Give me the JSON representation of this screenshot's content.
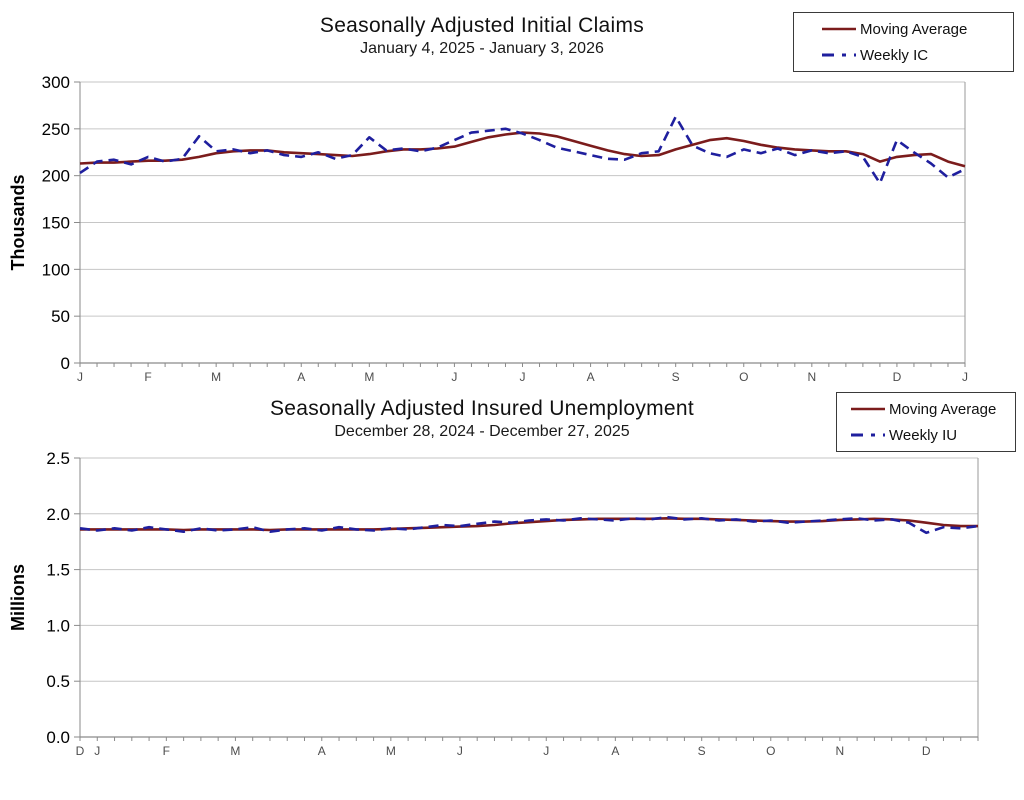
{
  "chart_data": [
    {
      "type": "line",
      "title": "Seasonally Adjusted Initial Claims",
      "subtitle": "January 4, 2025 - January 3, 2026",
      "ylabel": "Thousands",
      "ylim": [
        0,
        300
      ],
      "yticks": [
        0,
        50,
        100,
        150,
        200,
        250,
        300
      ],
      "ytick_labels": [
        "0",
        "50",
        "100",
        "150",
        "200",
        "250",
        "300"
      ],
      "grid": "horizontal",
      "legend_position": "top-right",
      "x_unit": "week",
      "n_points": 53,
      "month_labels": [
        "J",
        "F",
        "M",
        "A",
        "M",
        "J",
        "J",
        "A",
        "S",
        "O",
        "N",
        "D",
        "J"
      ],
      "month_label_indices": [
        0,
        4,
        8,
        13,
        17,
        22,
        26,
        30,
        35,
        39,
        43,
        48,
        52
      ],
      "series": [
        {
          "name": "Moving Average",
          "color": "#7b1c1c",
          "style": "solid",
          "values": [
            213,
            214,
            214,
            215,
            216,
            216,
            217,
            220,
            224,
            226,
            227,
            227,
            225,
            224,
            223,
            222,
            221,
            223,
            226,
            228,
            228,
            229,
            231,
            236,
            241,
            244,
            246,
            245,
            242,
            237,
            232,
            227,
            223,
            221,
            222,
            228,
            233,
            238,
            240,
            237,
            233,
            230,
            228,
            227,
            226,
            226,
            223,
            215,
            220,
            222,
            223,
            215,
            210
          ]
        },
        {
          "name": "Weekly IC",
          "color": "#1f1f9e",
          "style": "dashed",
          "values": [
            203,
            215,
            217,
            212,
            220,
            215,
            218,
            242,
            226,
            228,
            224,
            227,
            222,
            220,
            225,
            218,
            222,
            241,
            227,
            229,
            226,
            230,
            238,
            246,
            248,
            250,
            245,
            238,
            230,
            226,
            222,
            218,
            217,
            224,
            226,
            263,
            232,
            224,
            220,
            228,
            224,
            229,
            222,
            227,
            224,
            226,
            220,
            192,
            238,
            225,
            213,
            198,
            207
          ]
        }
      ]
    },
    {
      "type": "line",
      "title": "Seasonally Adjusted Insured Unemployment",
      "subtitle": "December 28, 2024 - December 27, 2025",
      "ylabel": "Millions",
      "ylim": [
        0,
        2.5
      ],
      "yticks": [
        0,
        0.5,
        1.0,
        1.5,
        2.0,
        2.5
      ],
      "ytick_labels": [
        "0.0",
        "0.5",
        "1.0",
        "1.5",
        "2.0",
        "2.5"
      ],
      "grid": "horizontal",
      "legend_position": "top-right",
      "x_unit": "week",
      "n_points": 53,
      "month_labels": [
        "D",
        "J",
        "F",
        "M",
        "A",
        "M",
        "J",
        "J",
        "A",
        "S",
        "O",
        "N",
        "D"
      ],
      "month_label_indices": [
        0,
        1,
        5,
        9,
        14,
        18,
        22,
        27,
        31,
        36,
        40,
        44,
        49
      ],
      "series": [
        {
          "name": "Moving Average",
          "color": "#7b1c1c",
          "style": "solid",
          "values": [
            1.86,
            1.86,
            1.86,
            1.86,
            1.86,
            1.86,
            1.855,
            1.86,
            1.86,
            1.86,
            1.86,
            1.855,
            1.86,
            1.86,
            1.86,
            1.86,
            1.86,
            1.86,
            1.865,
            1.87,
            1.875,
            1.88,
            1.885,
            1.89,
            1.9,
            1.915,
            1.925,
            1.935,
            1.945,
            1.95,
            1.955,
            1.955,
            1.955,
            1.955,
            1.96,
            1.955,
            1.955,
            1.95,
            1.945,
            1.94,
            1.935,
            1.93,
            1.93,
            1.935,
            1.945,
            1.95,
            1.955,
            1.95,
            1.94,
            1.92,
            1.9,
            1.89,
            1.89
          ]
        },
        {
          "name": "Weekly IU",
          "color": "#1f1f9e",
          "style": "dashed",
          "values": [
            1.87,
            1.85,
            1.87,
            1.85,
            1.88,
            1.86,
            1.84,
            1.87,
            1.85,
            1.86,
            1.88,
            1.84,
            1.86,
            1.87,
            1.85,
            1.88,
            1.86,
            1.85,
            1.87,
            1.86,
            1.88,
            1.9,
            1.89,
            1.91,
            1.93,
            1.92,
            1.94,
            1.95,
            1.94,
            1.96,
            1.95,
            1.94,
            1.96,
            1.95,
            1.97,
            1.95,
            1.96,
            1.94,
            1.95,
            1.93,
            1.94,
            1.92,
            1.93,
            1.94,
            1.95,
            1.96,
            1.94,
            1.95,
            1.92,
            1.83,
            1.88,
            1.87,
            1.89
          ]
        }
      ]
    }
  ]
}
